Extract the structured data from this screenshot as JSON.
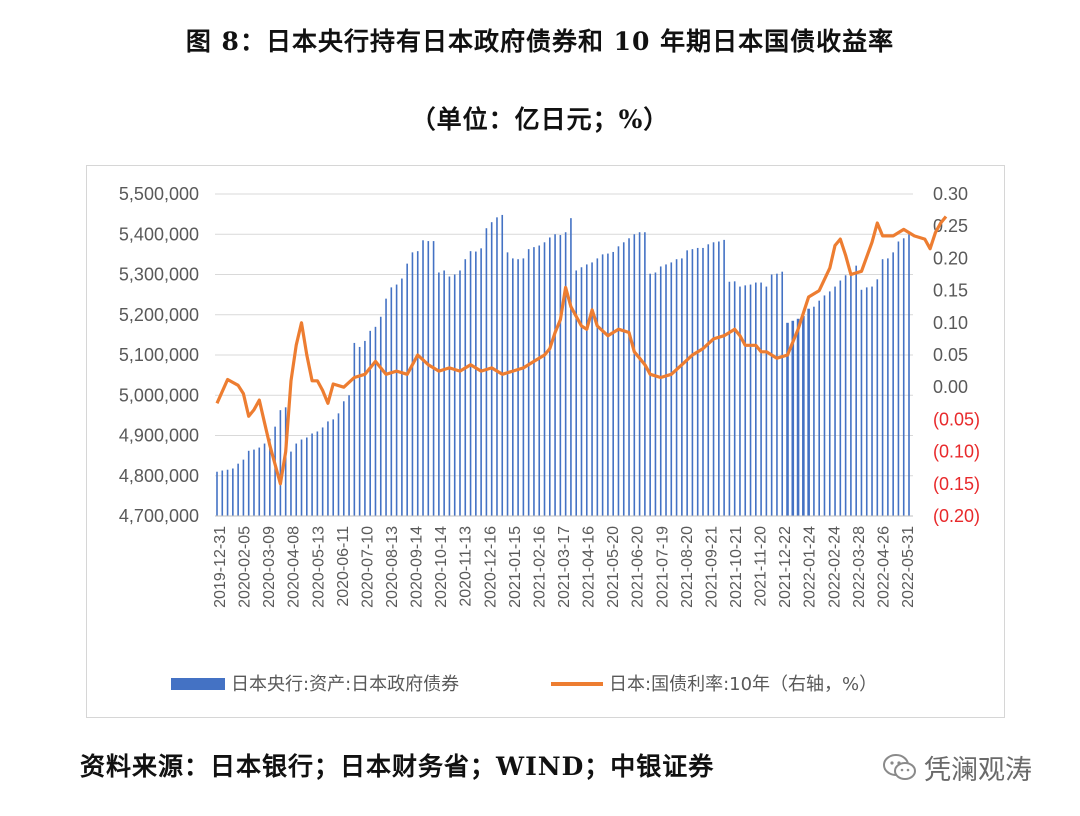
{
  "title_line1": "图 8：日本央行持有日本政府债券和 10 年期日本国债收益率",
  "title_line2": "（单位：亿日元；%）",
  "source": "资料来源：日本银行；日本财务省；WIND；中银证券",
  "watermark": "凭澜观涛",
  "colors": {
    "bar": "#4472C4",
    "line": "#ED7D31",
    "negative_tick": "#E8292B",
    "grid": "#D9D9D9",
    "axis_text": "#595959"
  },
  "chart_data": {
    "type": "bar+line",
    "x_tick_labels": [
      "2019-12-31",
      "2020-02-05",
      "2020-03-09",
      "2020-04-08",
      "2020-05-13",
      "2020-06-11",
      "2020-07-10",
      "2020-08-13",
      "2020-09-14",
      "2020-10-14",
      "2020-11-13",
      "2020-12-16",
      "2021-01-15",
      "2021-02-16",
      "2021-03-17",
      "2021-04-16",
      "2021-05-20",
      "2021-06-20",
      "2021-07-19",
      "2021-08-20",
      "2021-09-21",
      "2021-10-21",
      "2021-11-20",
      "2021-12-22",
      "2022-01-24",
      "2022-02-24",
      "2022-03-28",
      "2022-04-26",
      "2022-05-31"
    ],
    "left_axis": {
      "min": 4700000,
      "max": 5500000,
      "step": 100000,
      "tick_labels": [
        "4,700,000",
        "4,800,000",
        "4,900,000",
        "5,000,000",
        "5,100,000",
        "5,200,000",
        "5,300,000",
        "5,400,000",
        "5,500,000"
      ]
    },
    "right_axis": {
      "min": -0.2,
      "max": 0.3,
      "step": 0.05,
      "tick_labels": [
        "(0.20)",
        "(0.15)",
        "(0.10)",
        "(0.05)",
        "0.00",
        "0.05",
        "0.10",
        "0.15",
        "0.20",
        "0.25",
        "0.30"
      ]
    },
    "series": [
      {
        "name": "日本央行:资产:日本政府债券",
        "type": "bar",
        "axis": "left",
        "values": [
          4810000,
          4813000,
          4815000,
          4818000,
          4830000,
          4840000,
          4862000,
          4865000,
          4870000,
          4880000,
          4892000,
          4922000,
          4963000,
          4970000,
          4860000,
          4880000,
          4890000,
          4895000,
          4905000,
          4910000,
          4920000,
          4935000,
          4940000,
          4955000,
          4985000,
          5000000,
          5130000,
          5120000,
          5135000,
          5160000,
          5170000,
          5195000,
          5240000,
          5268000,
          5275000,
          5290000,
          5327000,
          5355000,
          5358000,
          5385000,
          5383000,
          5383000,
          5305000,
          5310000,
          5295000,
          5300000,
          5310000,
          5338000,
          5358000,
          5357000,
          5365000,
          5415000,
          5430000,
          5442000,
          5448000,
          5355000,
          5340000,
          5338000,
          5340000,
          5363000,
          5368000,
          5372000,
          5380000,
          5392000,
          5400000,
          5398000,
          5405000,
          5440000,
          5310000,
          5318000,
          5325000,
          5330000,
          5340000,
          5350000,
          5352000,
          5356000,
          5370000,
          5380000,
          5390000,
          5400000,
          5405000,
          5405000,
          5302000,
          5305000,
          5320000,
          5325000,
          5330000,
          5338000,
          5340000,
          5360000,
          5363000,
          5366000,
          5366000,
          5375000,
          5380000,
          5382000,
          5386000,
          5282000,
          5283000,
          5270000,
          5273000,
          5275000,
          5280000,
          5280000,
          5270000,
          5300000,
          5302000,
          5307000,
          5180000,
          5185000,
          5190000,
          5197000,
          5215000,
          5220000,
          5235000,
          5248000,
          5258000,
          5270000,
          5285000,
          5298000,
          5300000,
          5322000,
          5262000,
          5268000,
          5270000,
          5288000,
          5338000,
          5340000,
          5355000,
          5382000,
          5390000,
          5400000
        ]
      },
      {
        "name": "日本:国债利率:10年（右轴，%）",
        "type": "line",
        "axis": "right",
        "points": [
          [
            0,
            -0.025
          ],
          [
            2,
            0.012
          ],
          [
            4,
            0.003
          ],
          [
            5,
            -0.01
          ],
          [
            6,
            -0.045
          ],
          [
            7,
            -0.035
          ],
          [
            8,
            -0.02
          ],
          [
            9,
            -0.055
          ],
          [
            10,
            -0.09
          ],
          [
            11,
            -0.12
          ],
          [
            12,
            -0.15
          ],
          [
            13,
            -0.1
          ],
          [
            14,
            0.01
          ],
          [
            15,
            0.065
          ],
          [
            16,
            0.1
          ],
          [
            17,
            0.05
          ],
          [
            18,
            0.01
          ],
          [
            19,
            0.01
          ],
          [
            20,
            -0.005
          ],
          [
            21,
            -0.025
          ],
          [
            22,
            0.005
          ],
          [
            24,
            0.0
          ],
          [
            26,
            0.015
          ],
          [
            28,
            0.02
          ],
          [
            30,
            0.04
          ],
          [
            32,
            0.02
          ],
          [
            34,
            0.025
          ],
          [
            36,
            0.02
          ],
          [
            38,
            0.05
          ],
          [
            40,
            0.035
          ],
          [
            42,
            0.025
          ],
          [
            44,
            0.03
          ],
          [
            46,
            0.025
          ],
          [
            48,
            0.035
          ],
          [
            50,
            0.025
          ],
          [
            52,
            0.03
          ],
          [
            54,
            0.02
          ],
          [
            56,
            0.025
          ],
          [
            58,
            0.03
          ],
          [
            60,
            0.04
          ],
          [
            62,
            0.05
          ],
          [
            63,
            0.06
          ],
          [
            64,
            0.085
          ],
          [
            65,
            0.105
          ],
          [
            66,
            0.155
          ],
          [
            67,
            0.125
          ],
          [
            68,
            0.11
          ],
          [
            69,
            0.095
          ],
          [
            70,
            0.09
          ],
          [
            71,
            0.12
          ],
          [
            72,
            0.095
          ],
          [
            74,
            0.08
          ],
          [
            76,
            0.09
          ],
          [
            78,
            0.085
          ],
          [
            79,
            0.055
          ],
          [
            80,
            0.045
          ],
          [
            81,
            0.035
          ],
          [
            82,
            0.02
          ],
          [
            84,
            0.015
          ],
          [
            86,
            0.02
          ],
          [
            88,
            0.035
          ],
          [
            90,
            0.05
          ],
          [
            92,
            0.06
          ],
          [
            94,
            0.075
          ],
          [
            96,
            0.08
          ],
          [
            98,
            0.09
          ],
          [
            99,
            0.08
          ],
          [
            100,
            0.065
          ],
          [
            102,
            0.065
          ],
          [
            103,
            0.055
          ],
          [
            104,
            0.055
          ],
          [
            106,
            0.045
          ],
          [
            108,
            0.05
          ],
          [
            110,
            0.09
          ],
          [
            112,
            0.14
          ],
          [
            114,
            0.15
          ],
          [
            116,
            0.185
          ],
          [
            117,
            0.22
          ],
          [
            118,
            0.23
          ],
          [
            119,
            0.205
          ],
          [
            120,
            0.175
          ],
          [
            122,
            0.18
          ],
          [
            124,
            0.225
          ],
          [
            125,
            0.255
          ],
          [
            126,
            0.235
          ],
          [
            128,
            0.235
          ],
          [
            130,
            0.245
          ],
          [
            132,
            0.235
          ],
          [
            134,
            0.23
          ],
          [
            135,
            0.215
          ],
          [
            136,
            0.24
          ],
          [
            137,
            0.255
          ],
          [
            138,
            0.265
          ]
        ]
      }
    ],
    "legend": [
      "日本央行:资产:日本政府债券",
      "日本:国债利率:10年（右轴，%）"
    ],
    "legend_position": "bottom",
    "grid": true
  }
}
